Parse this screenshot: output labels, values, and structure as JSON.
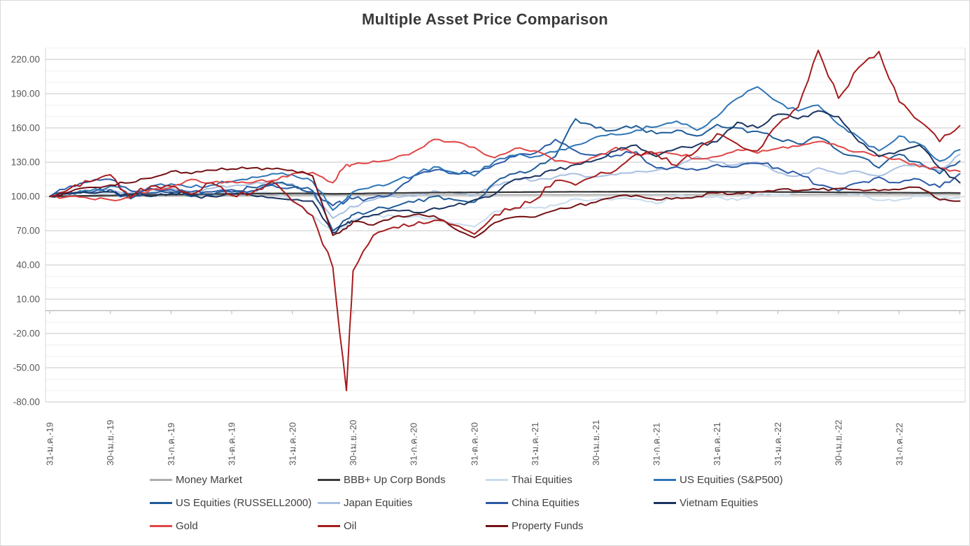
{
  "chart_data": {
    "type": "line",
    "title": "Multiple Asset Price Comparison",
    "x_axis": {
      "labels": [
        "31-ม.ค.-19",
        "30-เม.ย.-19",
        "31-ก.ค.-19",
        "31-ต.ค.-19",
        "31-ม.ค.-20",
        "30-เม.ย.-20",
        "31-ก.ค.-20",
        "31-ต.ค.-20",
        "31-ม.ค.-21",
        "30-เม.ย.-21",
        "31-ก.ค.-21",
        "31-ต.ค.-21",
        "31-ม.ค.-22",
        "30-เม.ย.-22",
        "31-ก.ค.-22"
      ],
      "label_months": [
        0,
        3,
        6,
        9,
        12,
        15,
        18,
        21,
        24,
        27,
        30,
        33,
        36,
        39,
        42
      ],
      "tick_months": [
        0,
        3,
        6,
        9,
        12,
        15,
        18,
        21,
        24,
        27,
        30,
        33,
        36,
        39,
        42,
        45
      ]
    },
    "y_axis": {
      "min": -80,
      "max": 230,
      "major_step": 30,
      "minor_step": 10,
      "tick_labels": [
        "220.00",
        "190.00",
        "160.00",
        "130.00",
        "100.00",
        "70.00",
        "40.00",
        "10.00",
        "-20.00",
        "-50.00",
        "-80.00"
      ]
    },
    "grid": {
      "major_color": "#d2d2d2",
      "minor_color": "#efefef",
      "axis_color": "#b5b5b5",
      "border_color": "#d9d9d9"
    },
    "legend_position": "bottom",
    "legend_columns": 4,
    "x_months": [
      0,
      1,
      2,
      3,
      4,
      5,
      6,
      7,
      8,
      9,
      10,
      11,
      12,
      13,
      14,
      14.67,
      15,
      16,
      17,
      18,
      19,
      20,
      21,
      22,
      23,
      24,
      25,
      26,
      27,
      28,
      29,
      30,
      31,
      32,
      33,
      34,
      35,
      36,
      37,
      38,
      39,
      40,
      41,
      42,
      43,
      44,
      45
    ],
    "categories": [
      "2019-01-31",
      "2019-02-28",
      "2019-03-31",
      "2019-04-30",
      "2019-05-31",
      "2019-06-30",
      "2019-07-31",
      "2019-08-31",
      "2019-09-30",
      "2019-10-31",
      "2019-11-30",
      "2019-12-31",
      "2020-01-31",
      "2020-02-29",
      "2020-03-31",
      "2020-04-20",
      "2020-04-30",
      "2020-05-31",
      "2020-06-30",
      "2020-07-31",
      "2020-08-31",
      "2020-09-30",
      "2020-10-31",
      "2020-11-30",
      "2020-12-31",
      "2021-01-31",
      "2021-02-28",
      "2021-03-31",
      "2021-04-30",
      "2021-05-31",
      "2021-06-30",
      "2021-07-31",
      "2021-08-31",
      "2021-09-30",
      "2021-10-31",
      "2021-11-30",
      "2021-12-31",
      "2022-01-31",
      "2022-02-28",
      "2022-03-31",
      "2022-04-30",
      "2022-05-31",
      "2022-06-30",
      "2022-07-31",
      "2022-08-31",
      "2022-09-30",
      "2022-10-31"
    ],
    "base_value": 100,
    "draw_order": [
      0,
      2,
      5,
      1,
      6,
      4,
      3,
      8,
      7,
      10,
      9
    ],
    "series": [
      {
        "id": "money-market",
        "name": "Money Market",
        "color": "#adadad",
        "width": 2,
        "jitter": 0.06,
        "values": [
          100,
          100.1,
          100.2,
          100.3,
          100.4,
          100.5,
          100.6,
          100.7,
          100.8,
          100.9,
          101,
          101.1,
          101.15,
          101.2,
          101.25,
          101.27,
          101.3,
          101.32,
          101.34,
          101.36,
          101.38,
          101.4,
          101.41,
          101.42,
          101.43,
          101.44,
          101.45,
          101.46,
          101.47,
          101.48,
          101.49,
          101.5,
          101.5,
          101.51,
          101.52,
          101.53,
          101.54,
          101.55,
          101.55,
          101.56,
          101.57,
          101.57,
          101.58,
          101.58,
          101.59,
          101.6,
          101.6
        ]
      },
      {
        "id": "bbb-up-corp-bonds",
        "name": "BBB+ Up Corp Bonds",
        "color": "#3a3a3a",
        "width": 2.3,
        "jitter": 0.1,
        "values": [
          100,
          100.3,
          100.6,
          100.9,
          101.1,
          101.4,
          101.7,
          101.9,
          102.1,
          102.3,
          102.5,
          102.6,
          102.7,
          102.6,
          102.3,
          102.4,
          102.5,
          102.8,
          103,
          103.2,
          103.4,
          103.5,
          103.6,
          103.7,
          103.8,
          103.9,
          104,
          104.05,
          104.1,
          104.15,
          104.2,
          104.2,
          104.2,
          104.15,
          104.1,
          104.05,
          104,
          103.9,
          103.8,
          103.7,
          103.6,
          103.5,
          103.4,
          103.3,
          103.2,
          103.1,
          103
        ]
      },
      {
        "id": "thai-equities",
        "name": "Thai Equities",
        "color": "#c9dcee",
        "width": 2,
        "jitter": 1.4,
        "values": [
          100,
          100.5,
          101.5,
          103,
          100.5,
          104,
          106.5,
          104,
          101.5,
          103.5,
          104,
          102.5,
          97,
          83,
          69,
          74,
          80,
          83,
          83,
          82.5,
          81,
          76,
          73.5,
          87,
          89,
          90,
          92,
          98,
          97.5,
          98,
          97.8,
          93.7,
          101,
          99,
          100,
          96.6,
          102,
          101.5,
          103.7,
          104.4,
          102.6,
          102.4,
          96.6,
          97,
          101,
          98,
          99
        ]
      },
      {
        "id": "us-equities-sp500",
        "name": "US  Equities (S&P500)",
        "color": "#2e75b6",
        "width": 2,
        "jitter": 2.2,
        "values": [
          100,
          103,
          105,
          109,
          102,
          109,
          111,
          108,
          110,
          113,
          117,
          120,
          119,
          113,
          88,
          98,
          104,
          109,
          113,
          118,
          126,
          121,
          118,
          131,
          136,
          135,
          139,
          145,
          152,
          154,
          158,
          161,
          166,
          158,
          170,
          186,
          196,
          183,
          175,
          180,
          163,
          152,
          140,
          153,
          146,
          131,
          141
        ]
      },
      {
        "id": "us-equities-russell2000",
        "name": "US  Equities (RUSSELL2000)",
        "color": "#1f5c99",
        "width": 2,
        "jitter": 2.6,
        "values": [
          100,
          104,
          103,
          106,
          98,
          103,
          104,
          100,
          101,
          104,
          108,
          111,
          110,
          105,
          70,
          80,
          84,
          88,
          91,
          95,
          100,
          97,
          95,
          112,
          120,
          125,
          135,
          168,
          160,
          158,
          162,
          155,
          158,
          153,
          163,
          160,
          157,
          150,
          146,
          152,
          140,
          135,
          125,
          137,
          130,
          120,
          131
        ]
      },
      {
        "id": "japan-equities",
        "name": "Japan Equities",
        "color": "#a9c0e2",
        "width": 2,
        "jitter": 1.7,
        "values": [
          100,
          103,
          104,
          106,
          103,
          106,
          107,
          104,
          107,
          109,
          111,
          113,
          111,
          102,
          81,
          88,
          91,
          97,
          100,
          100,
          105,
          103,
          101,
          110,
          115,
          114,
          117,
          120,
          117,
          119,
          122,
          123,
          126,
          135,
          130,
          128,
          130,
          121,
          118,
          125,
          120,
          122,
          118,
          126,
          128,
          122,
          137
        ]
      },
      {
        "id": "china-equities",
        "name": "China Equities",
        "color": "#2c5aa8",
        "width": 2,
        "jitter": 2.3,
        "values": [
          100,
          109,
          113,
          115,
          105,
          107,
          106,
          104,
          104,
          106,
          105,
          110,
          108,
          104,
          92,
          96,
          98,
          99,
          103,
          118,
          123,
          120,
          122,
          128,
          135,
          138,
          150,
          140,
          136,
          136,
          139,
          125,
          126,
          123,
          128,
          126,
          129,
          125,
          120,
          110,
          105,
          112,
          117,
          112,
          115,
          108,
          120
        ]
      },
      {
        "id": "vietnam-equities",
        "name": "Vietnam Equities",
        "color": "#1b3460",
        "width": 2,
        "jitter": 2.1,
        "values": [
          100,
          102,
          103,
          104,
          102,
          100,
          103,
          101,
          100,
          102,
          101,
          99,
          97,
          96,
          68,
          76,
          78,
          84,
          88,
          86,
          90,
          92,
          97,
          102,
          115,
          118,
          123,
          128,
          132,
          140,
          145,
          135,
          142,
          145,
          148,
          165,
          160,
          172,
          168,
          175,
          170,
          148,
          135,
          140,
          145,
          125,
          112
        ]
      },
      {
        "id": "gold",
        "name": "Gold",
        "color": "#e04545",
        "width": 2,
        "jitter": 1.9,
        "values": [
          100,
          100,
          98,
          97,
          99,
          106,
          108,
          115,
          112,
          113,
          112,
          114,
          120,
          121,
          112,
          128,
          128,
          131,
          133,
          139,
          150,
          148,
          143,
          134,
          142,
          140,
          131,
          129,
          135,
          143,
          137,
          138,
          137,
          133,
          135,
          141,
          138,
          142,
          144,
          148,
          144,
          139,
          136,
          133,
          126,
          125,
          122
        ]
      },
      {
        "id": "oil",
        "name": "Oil",
        "color": "#a61c1c",
        "width": 2,
        "jitter": 3.2,
        "values": [
          100,
          107,
          113,
          119,
          99,
          109,
          109,
          102,
          112,
          101,
          103,
          113,
          96,
          83,
          38,
          -70,
          35,
          66,
          73,
          75,
          79,
          75,
          67,
          84,
          90,
          97,
          114,
          110,
          118,
          123,
          137,
          137,
          127,
          140,
          155,
          146,
          140,
          163,
          178,
          228,
          186,
          213,
          227,
          183,
          166,
          148,
          162
        ]
      },
      {
        "id": "property-funds",
        "name": "Property Funds",
        "color": "#731013",
        "width": 2,
        "jitter": 1.5,
        "values": [
          100,
          104,
          108,
          110,
          112,
          116,
          122,
          120,
          123,
          124,
          125,
          124,
          123,
          118,
          66,
          72,
          78,
          75,
          82,
          84,
          83,
          72,
          64,
          77,
          82,
          82,
          88,
          92,
          95,
          100,
          101,
          97,
          99,
          100,
          103,
          103,
          104,
          106,
          105,
          106,
          107,
          106,
          105,
          106,
          108,
          97,
          96
        ]
      }
    ]
  }
}
